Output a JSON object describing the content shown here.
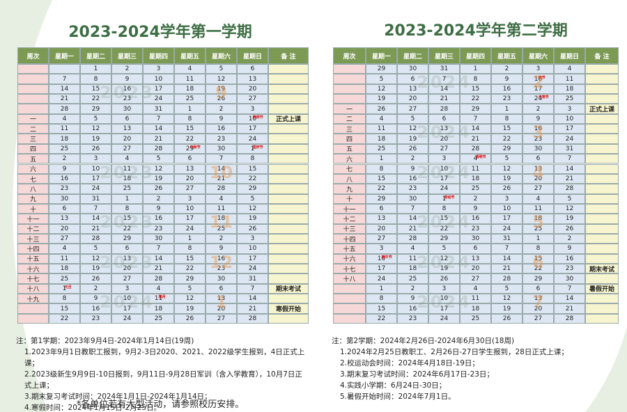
{
  "left": {
    "title": "2023-2024学年第一学期",
    "header": [
      "周次",
      "星期一",
      "星期二",
      "星期三",
      "星期四",
      "星期五",
      "星期六",
      "星期日",
      "备 注"
    ],
    "rows": [
      [
        "",
        "",
        "1",
        "2",
        "3",
        "4",
        "5",
        "6",
        ""
      ],
      [
        "",
        "7",
        "8",
        "9",
        "10",
        "11",
        "12",
        "13",
        ""
      ],
      [
        "",
        "14",
        "15",
        "16",
        "17",
        "18",
        "19",
        "20",
        ""
      ],
      [
        "",
        "21",
        "22",
        "23",
        "24",
        "25",
        "26",
        "27",
        ""
      ],
      [
        "",
        "28",
        "29",
        "30",
        "31",
        "1",
        "2",
        "3",
        ""
      ],
      [
        "一",
        "4",
        "5",
        "6",
        "7",
        "8",
        "9",
        {
          "text": "10",
          "note": "教师节"
        },
        "正式上课"
      ],
      [
        "二",
        "11",
        "12",
        "13",
        "14",
        "15",
        "16",
        "17",
        ""
      ],
      [
        "三",
        "18",
        "19",
        "20",
        "21",
        "22",
        "23",
        "24",
        ""
      ],
      [
        "四",
        "25",
        "26",
        "27",
        "28",
        {
          "text": "29",
          "note": "中秋节"
        },
        "30",
        {
          "text": "1",
          "note": "国庆节"
        },
        ""
      ],
      [
        "五",
        "2",
        "3",
        "4",
        "5",
        "6",
        "7",
        "8",
        ""
      ],
      [
        "六",
        "9",
        "10",
        "11",
        "12",
        "13",
        "14",
        "15",
        ""
      ],
      [
        "七",
        "16",
        "17",
        "18",
        "19",
        "20",
        "21",
        "22",
        ""
      ],
      [
        "八",
        "23",
        "24",
        "25",
        "26",
        "27",
        "28",
        "29",
        ""
      ],
      [
        "九",
        "30",
        "31",
        "1",
        "2",
        "3",
        "4",
        "5",
        ""
      ],
      [
        "十",
        "6",
        "7",
        "8",
        "9",
        "10",
        "11",
        "12",
        ""
      ],
      [
        "十一",
        "13",
        "14",
        "15",
        "16",
        "17",
        "18",
        "19",
        ""
      ],
      [
        "十二",
        "20",
        "21",
        "22",
        "23",
        "24",
        "25",
        "26",
        ""
      ],
      [
        "十三",
        "27",
        "28",
        "29",
        "30",
        "1",
        "2",
        "3",
        ""
      ],
      [
        "十四",
        "4",
        "5",
        "6",
        "7",
        "8",
        "9",
        "10",
        ""
      ],
      [
        "十五",
        "11",
        "12",
        "13",
        "14",
        "15",
        "16",
        "17",
        ""
      ],
      [
        "十六",
        "18",
        "19",
        "20",
        "21",
        "22",
        "23",
        "24",
        ""
      ],
      [
        "十七",
        "25",
        "26",
        "27",
        "28",
        "29",
        "30",
        "31",
        ""
      ],
      [
        "十八",
        {
          "text": "1",
          "note": "元旦"
        },
        "2",
        "3",
        "4",
        "5",
        "6",
        "7",
        "期末考试"
      ],
      [
        "十九",
        "8",
        "9",
        "10",
        {
          "text": "11",
          "note": "腊月"
        },
        "12",
        "13",
        "14",
        ""
      ],
      [
        "",
        "15",
        "16",
        "17",
        "18",
        "19",
        "20",
        "21",
        "寒假开始"
      ],
      [
        "",
        "22",
        "23",
        "24",
        "25",
        "26",
        "27",
        "28",
        ""
      ]
    ],
    "watermarks": [
      {
        "year": "2023",
        "month": "9"
      },
      {
        "year": "2023",
        "month": "10"
      },
      {
        "year": "2023",
        "month": "11"
      },
      {
        "year": "2023",
        "month": "12"
      },
      {
        "year": "2024",
        "month": "1"
      }
    ],
    "notes": [
      "注：第1学期：2023年9月4日-2024年1月14日(19周)",
      "1.2023年9月1日教职工报到，9月2-3日2020、2021、2022级学生报到，4日正式上课；",
      "2.2023级新生9月9日-10日报到，9月11日-9月28日军训（含入学教育），10月7日正式上课；",
      "3.期末复习考试时间：2024年1月1日-2024年1月14日；",
      "4.寒假时间：2024年1月15日-2月25日。"
    ],
    "footer": "*各单位若有大型活动，请参照校历安排。"
  },
  "right": {
    "title": "2023-2024学年第二学期",
    "header": [
      "周次",
      "星期一",
      "星期二",
      "星期三",
      "星期四",
      "星期五",
      "星期六",
      "星期日",
      "备 注"
    ],
    "rows": [
      [
        "",
        "29",
        "30",
        "31",
        "1",
        "2",
        "3",
        "4",
        ""
      ],
      [
        "",
        "5",
        "6",
        "7",
        "8",
        "9",
        {
          "text": "10",
          "note": "春节"
        },
        "11",
        ""
      ],
      [
        "",
        "12",
        "13",
        "14",
        "15",
        "16",
        "17",
        "18",
        ""
      ],
      [
        "",
        "19",
        "20",
        "21",
        "22",
        "23",
        {
          "text": "24",
          "note": "元宵节"
        },
        "25",
        ""
      ],
      [
        "一",
        "26",
        "27",
        "28",
        "29",
        "1",
        "2",
        "3",
        "正式上课"
      ],
      [
        "二",
        "4",
        "5",
        "6",
        "7",
        "8",
        "9",
        "10",
        ""
      ],
      [
        "三",
        "11",
        "12",
        "13",
        "14",
        "15",
        "16",
        "17",
        ""
      ],
      [
        "四",
        "18",
        "19",
        "20",
        "21",
        "22",
        "23",
        "24",
        ""
      ],
      [
        "五",
        "25",
        "26",
        "27",
        "28",
        "29",
        "30",
        "31",
        ""
      ],
      [
        "六",
        "1",
        "2",
        "3",
        {
          "text": "4",
          "note": "清明节"
        },
        "5",
        "6",
        "7",
        ""
      ],
      [
        "七",
        "8",
        "9",
        "10",
        "11",
        "12",
        "13",
        "14",
        ""
      ],
      [
        "八",
        "15",
        "16",
        "17",
        "18",
        "19",
        "20",
        "21",
        ""
      ],
      [
        "九",
        "22",
        "23",
        "24",
        "25",
        "26",
        "27",
        "28",
        ""
      ],
      [
        "十",
        "29",
        "30",
        {
          "text": "1",
          "note": "劳动节"
        },
        "2",
        "3",
        "4",
        "5",
        ""
      ],
      [
        "十一",
        "6",
        "7",
        "8",
        "9",
        "10",
        "11",
        "12",
        ""
      ],
      [
        "十二",
        "13",
        "14",
        "15",
        "16",
        "17",
        "18",
        "19",
        ""
      ],
      [
        "十三",
        "20",
        "21",
        "22",
        "23",
        "24",
        "25",
        "26",
        ""
      ],
      [
        "十四",
        "27",
        "28",
        "29",
        "30",
        "31",
        "1",
        "2",
        ""
      ],
      [
        "十五",
        "3",
        "4",
        "5",
        "6",
        "7",
        "8",
        "9",
        ""
      ],
      [
        "十六",
        {
          "text": "10",
          "note": "端午节"
        },
        "11",
        "12",
        "13",
        "14",
        "15",
        "16",
        ""
      ],
      [
        "十七",
        "17",
        "18",
        "19",
        "20",
        "21",
        "22",
        "23",
        "期末考试"
      ],
      [
        "十八",
        "24",
        "25",
        "26",
        "27",
        "28",
        "29",
        "30",
        ""
      ],
      [
        "",
        "1",
        "2",
        "3",
        "4",
        "5",
        "6",
        "7",
        "暑假开始"
      ],
      [
        "",
        "8",
        "9",
        "10",
        "11",
        "12",
        "13",
        "14",
        ""
      ],
      [
        "",
        "15",
        "16",
        "17",
        "18",
        "19",
        "20",
        "21",
        ""
      ],
      [
        "",
        "22",
        "23",
        "24",
        "25",
        "26",
        "27",
        "28",
        ""
      ]
    ],
    "watermarks": [
      {
        "year": "2024",
        "month": "2"
      },
      {
        "year": "2024",
        "month": "3"
      },
      {
        "year": "2024",
        "month": "4"
      },
      {
        "year": "2024",
        "month": "5"
      },
      {
        "year": "2024",
        "month": "6"
      },
      {
        "year": "2024",
        "month": "7"
      }
    ],
    "notes": [
      "注：第2学期：2024年2月26日-2024年6月30日(18周)",
      "1.2024年2月25日教职工、2月26日-27日学生报到，28日正式上课；",
      "2.校运动会时间：2024年4月18日-19日；",
      "3.期末复习考试时间：2024年6月17日-23日；",
      "4.实践小学期：6月24日-30日；",
      "5.暑假开始时间：2024年7月1日。"
    ]
  }
}
